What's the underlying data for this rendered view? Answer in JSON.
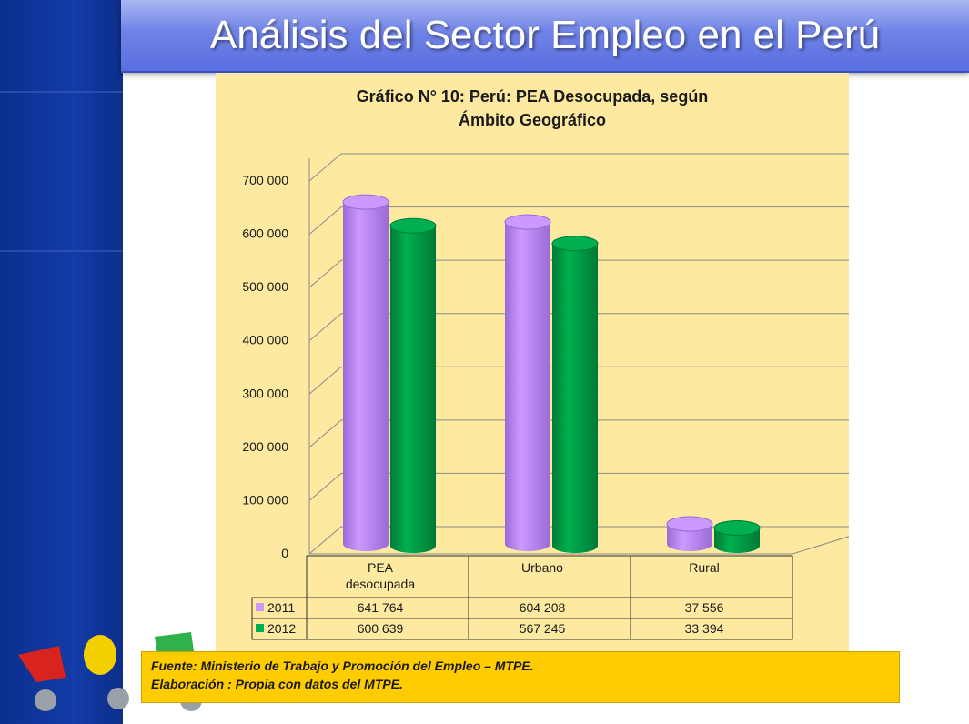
{
  "header": {
    "title": "Análisis del Sector Empleo en el Perú"
  },
  "chart_data": {
    "type": "bar",
    "title": "Gráfico N° 10: Perú: PEA Desocupada, según",
    "subtitle": "Ámbito Geográfico",
    "categories": [
      "PEA desocupada",
      "Urbano",
      "Rural"
    ],
    "category_lines": [
      [
        "PEA",
        "desocupada"
      ],
      [
        "Urbano"
      ],
      [
        "Rural"
      ]
    ],
    "series": [
      {
        "name": "2011",
        "values": [
          641764,
          604208,
          37556
        ],
        "labels": [
          "641 764",
          "604 208",
          "37 556"
        ],
        "color": "#cc99ff"
      },
      {
        "name": "2012",
        "values": [
          600639,
          567245,
          33394
        ],
        "labels": [
          "600 639",
          "567 245",
          "33 394"
        ],
        "color": "#00b050"
      }
    ],
    "ylim": [
      0,
      700000
    ],
    "yticks": [
      0,
      100000,
      200000,
      300000,
      400000,
      500000,
      600000,
      700000
    ],
    "ytick_labels": [
      "0",
      "100 000",
      "200 000",
      "300 000",
      "400 000",
      "500 000",
      "600 000",
      "700 000"
    ],
    "grid": true,
    "legend": "data-table"
  },
  "source": {
    "line1": "Fuente: Ministerio de Trabajo y Promoción del Empleo – MTPE.",
    "line2": "Elaboración : Propia con datos del MTPE."
  }
}
